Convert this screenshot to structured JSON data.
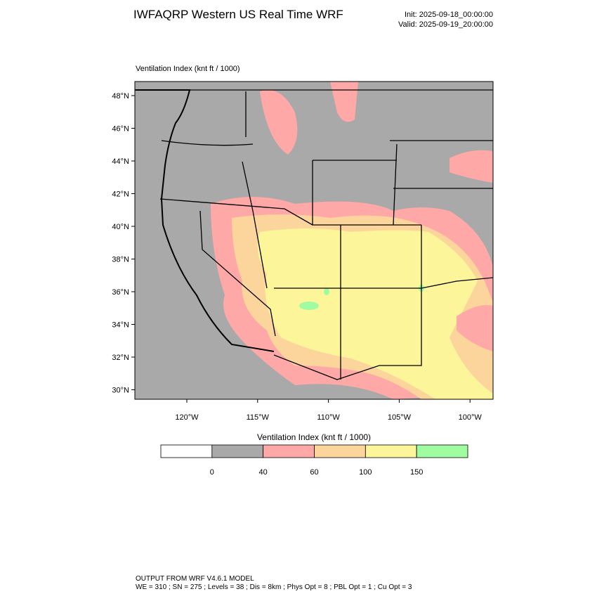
{
  "header": {
    "title": "IWFAQRP Western US Real Time WRF",
    "init": "Init: 2025-09-18_00:00:00",
    "valid": "Valid: 2025-09-19_20:00:00"
  },
  "map": {
    "subtitle": "Ventilation Index   (knt ft / 1000)",
    "lat_labels": [
      "48°N",
      "46°N",
      "44°N",
      "42°N",
      "40°N",
      "38°N",
      "36°N",
      "34°N",
      "32°N",
      "30°N"
    ],
    "lon_labels": [
      "120°W",
      "115°W",
      "110°W",
      "105°W",
      "100°W"
    ]
  },
  "colorbar": {
    "title": "Ventilation Index   (knt ft / 1000)",
    "labels": [
      "0",
      "40",
      "60",
      "100",
      "150"
    ],
    "colors": [
      "#ffffff",
      "#a9a9a9",
      "#ffa8a8",
      "#fcd59c",
      "#fcf59a",
      "#a0fca0"
    ]
  },
  "footer": {
    "line1": "OUTPUT FROM WRF V4.6.1 MODEL",
    "line2": "WE = 310 ; SN = 275 ; Levels = 38 ; Dis = 8km ; Phys Opt = 8 ; PBL Opt = 1 ; Cu Opt = 3"
  }
}
